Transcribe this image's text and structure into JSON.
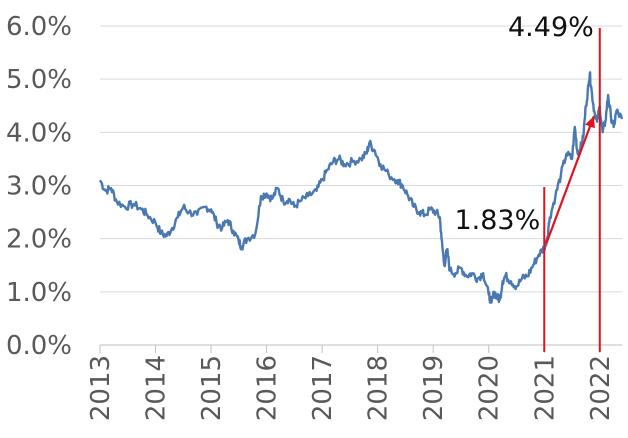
{
  "chart_data": {
    "type": "line",
    "title": "",
    "xlabel": "",
    "ylabel": "",
    "x_ticks": [
      "2013",
      "2014",
      "2015",
      "2016",
      "2017",
      "2018",
      "2019",
      "2020",
      "2021",
      "2022"
    ],
    "y_ticks": [
      "0.0%",
      "1.0%",
      "2.0%",
      "3.0%",
      "4.0%",
      "5.0%",
      "6.0%"
    ],
    "xlim": [
      2013.0,
      2022.4
    ],
    "ylim": [
      0,
      6
    ],
    "grid": "horizontal",
    "legend": "none",
    "series": [
      {
        "color": "#4a78b0",
        "points": [
          [
            2013.0,
            3.1
          ],
          [
            2013.1,
            2.9
          ],
          [
            2013.2,
            2.95
          ],
          [
            2013.3,
            2.7
          ],
          [
            2013.45,
            2.6
          ],
          [
            2013.6,
            2.65
          ],
          [
            2013.75,
            2.55
          ],
          [
            2013.85,
            2.45
          ],
          [
            2014.0,
            2.3
          ],
          [
            2014.1,
            2.1
          ],
          [
            2014.2,
            2.05
          ],
          [
            2014.3,
            2.2
          ],
          [
            2014.4,
            2.4
          ],
          [
            2014.5,
            2.6
          ],
          [
            2014.6,
            2.5
          ],
          [
            2014.75,
            2.45
          ],
          [
            2014.9,
            2.6
          ],
          [
            2015.0,
            2.55
          ],
          [
            2015.1,
            2.3
          ],
          [
            2015.2,
            2.2
          ],
          [
            2015.3,
            2.35
          ],
          [
            2015.4,
            2.15
          ],
          [
            2015.5,
            1.95
          ],
          [
            2015.55,
            1.85
          ],
          [
            2015.65,
            2.0
          ],
          [
            2015.8,
            2.1
          ],
          [
            2015.9,
            2.8
          ],
          [
            2016.0,
            2.85
          ],
          [
            2016.1,
            2.75
          ],
          [
            2016.2,
            2.95
          ],
          [
            2016.3,
            2.7
          ],
          [
            2016.4,
            2.75
          ],
          [
            2016.5,
            2.6
          ],
          [
            2016.6,
            2.7
          ],
          [
            2016.75,
            2.8
          ],
          [
            2016.9,
            2.9
          ],
          [
            2017.0,
            3.1
          ],
          [
            2017.1,
            3.3
          ],
          [
            2017.2,
            3.45
          ],
          [
            2017.3,
            3.5
          ],
          [
            2017.4,
            3.4
          ],
          [
            2017.55,
            3.45
          ],
          [
            2017.7,
            3.5
          ],
          [
            2017.8,
            3.6
          ],
          [
            2017.85,
            3.8
          ],
          [
            2017.95,
            3.65
          ],
          [
            2018.05,
            3.4
          ],
          [
            2018.2,
            3.2
          ],
          [
            2018.35,
            3.1
          ],
          [
            2018.45,
            3.0
          ],
          [
            2018.55,
            2.8
          ],
          [
            2018.65,
            2.6
          ],
          [
            2018.75,
            2.5
          ],
          [
            2018.85,
            2.45
          ],
          [
            2018.95,
            2.55
          ],
          [
            2019.05,
            2.5
          ],
          [
            2019.12,
            2.4
          ],
          [
            2019.15,
            2.0
          ],
          [
            2019.2,
            1.5
          ],
          [
            2019.25,
            1.8
          ],
          [
            2019.3,
            1.4
          ],
          [
            2019.4,
            1.35
          ],
          [
            2019.5,
            1.45
          ],
          [
            2019.6,
            1.3
          ],
          [
            2019.7,
            1.35
          ],
          [
            2019.8,
            1.25
          ],
          [
            2019.9,
            1.35
          ],
          [
            2020.0,
            0.95
          ],
          [
            2020.05,
            0.8
          ],
          [
            2020.1,
            1.0
          ],
          [
            2020.15,
            0.9
          ],
          [
            2020.2,
            0.85
          ],
          [
            2020.25,
            1.2
          ],
          [
            2020.3,
            1.3
          ],
          [
            2020.4,
            1.2
          ],
          [
            2020.5,
            1.1
          ],
          [
            2020.6,
            1.25
          ],
          [
            2020.7,
            1.3
          ],
          [
            2020.8,
            1.5
          ],
          [
            2020.9,
            1.7
          ],
          [
            2021.0,
            1.83
          ],
          [
            2021.05,
            2.0
          ],
          [
            2021.1,
            2.4
          ],
          [
            2021.2,
            2.8
          ],
          [
            2021.3,
            3.2
          ],
          [
            2021.4,
            3.6
          ],
          [
            2021.5,
            3.5
          ],
          [
            2021.55,
            4.1
          ],
          [
            2021.6,
            3.6
          ],
          [
            2021.65,
            3.7
          ],
          [
            2021.7,
            3.9
          ],
          [
            2021.75,
            4.5
          ],
          [
            2021.8,
            4.9
          ],
          [
            2021.82,
            5.1
          ],
          [
            2021.85,
            4.8
          ],
          [
            2021.9,
            4.4
          ],
          [
            2021.95,
            4.2
          ],
          [
            2022.0,
            4.49
          ],
          [
            2022.05,
            4.0
          ],
          [
            2022.1,
            4.2
          ],
          [
            2022.15,
            4.7
          ],
          [
            2022.2,
            4.3
          ],
          [
            2022.25,
            4.1
          ],
          [
            2022.3,
            4.4
          ],
          [
            2022.4,
            4.25
          ]
        ]
      }
    ],
    "annotations": [
      {
        "text": "1.83%",
        "x": 2021.0,
        "y": 1.83
      },
      {
        "text": "4.49%",
        "x": 2022.0,
        "y": 4.49
      }
    ],
    "marker_color": "#e0141f"
  }
}
